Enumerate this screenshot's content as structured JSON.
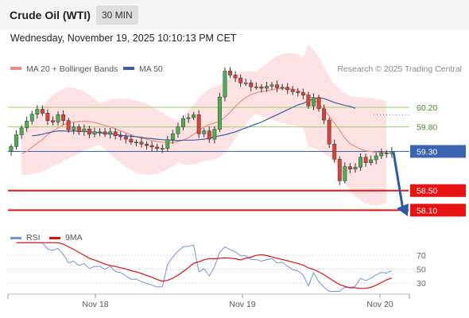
{
  "header": {
    "title": "Crude Oil (WTI)",
    "interval": "30 MIN"
  },
  "datetime": "Wednesday, November 19, 2025 10:10:13 PM CET",
  "legend": {
    "ma20": "MA 20 + Bollinger Bands",
    "ma50": "MA 50",
    "copyright": "Research © 2025 Trading Central"
  },
  "rsi_legend": {
    "rsi": "RSI",
    "ma": "9MA"
  },
  "colors": {
    "candle_up": "#4caf50",
    "candle_down": "#d9433a",
    "ma20": "#e6917f",
    "ma50": "#3a5fa5",
    "bollinger": "#fde2e4",
    "support": "#e81212",
    "pivot": "#3b63b0",
    "resistance": "#9ccc65",
    "forecast_arrow": "#2b5aa6",
    "rsi_line": "#6f95dd",
    "rsi_ma": "#e01010"
  },
  "chart_data": {
    "type": "candlestick",
    "x_ticks": [
      "Nov 18",
      "Nov 19",
      "Nov 20"
    ],
    "ylim": [
      57.7,
      60.85
    ],
    "levels": [
      {
        "value": 60.2,
        "label": "60.20",
        "kind": "resistance"
      },
      {
        "value": 59.8,
        "label": "59.80",
        "kind": "resistance"
      },
      {
        "value": 59.3,
        "label": "59.30",
        "kind": "pivot"
      },
      {
        "value": 58.5,
        "label": "58.50",
        "kind": "support"
      },
      {
        "value": 58.1,
        "label": "58.10",
        "kind": "support"
      }
    ],
    "closes": [
      59.4,
      59.64,
      59.78,
      59.92,
      60.06,
      60.16,
      60.08,
      59.93,
      59.9,
      60.05,
      59.93,
      59.74,
      59.8,
      59.7,
      59.76,
      59.65,
      59.7,
      59.7,
      59.65,
      59.7,
      59.62,
      59.6,
      59.55,
      59.49,
      59.49,
      59.45,
      59.42,
      59.39,
      59.36,
      59.36,
      59.54,
      59.66,
      59.8,
      59.97,
      59.99,
      60.05,
      59.66,
      59.72,
      59.55,
      59.75,
      60.41,
      60.94,
      60.86,
      60.8,
      60.7,
      60.7,
      60.62,
      60.62,
      60.59,
      60.63,
      60.66,
      60.6,
      60.61,
      60.56,
      60.52,
      60.5,
      60.45,
      60.23,
      60.4,
      60.17,
      59.94,
      59.45,
      59.14,
      58.7,
      58.99,
      58.94,
      58.98,
      59.18,
      59.07,
      59.13,
      59.21,
      59.27,
      59.25,
      59.3
    ],
    "ma20": [
      59.25,
      59.3,
      59.38,
      59.47,
      59.54,
      59.64,
      59.72,
      59.78,
      59.84,
      59.88,
      59.9,
      59.91,
      59.92,
      59.91,
      59.89,
      59.86,
      59.83,
      59.8,
      59.76,
      59.72,
      59.68,
      59.64,
      59.6,
      59.57,
      59.55,
      59.52,
      59.5,
      59.49,
      59.48,
      59.48,
      59.5,
      59.53,
      59.58,
      59.65,
      59.72,
      59.8,
      59.85,
      59.88,
      59.92,
      60.0,
      60.1,
      60.22,
      60.32,
      60.4,
      60.46,
      60.5,
      60.52,
      60.54,
      60.56,
      60.58,
      60.58,
      60.58,
      60.57,
      60.55,
      60.5,
      60.44,
      60.37,
      60.27,
      60.15,
      60.02,
      59.88,
      59.73,
      59.57,
      59.46,
      59.4,
      59.35,
      59.31,
      59.3,
      59.28,
      59.28,
      59.29
    ],
    "ma50": [
      59.62,
      59.63,
      59.65,
      59.68,
      59.7,
      59.72,
      59.72,
      59.71,
      59.72,
      59.71,
      59.71,
      59.7,
      59.69,
      59.68,
      59.67,
      59.66,
      59.65,
      59.63,
      59.62,
      59.61,
      59.6,
      59.59,
      59.57,
      59.56,
      59.55,
      59.54,
      59.53,
      59.53,
      59.52,
      59.53,
      59.53,
      59.53,
      59.54,
      59.55,
      59.57,
      59.6,
      59.62,
      59.64,
      59.67,
      59.7,
      59.74,
      59.78,
      59.82,
      59.86,
      59.9,
      59.95,
      60.0,
      60.05,
      60.1,
      60.15,
      60.2,
      60.25,
      60.28,
      60.33,
      60.37,
      60.4,
      60.38,
      60.34,
      60.3,
      60.27,
      60.24,
      60.22,
      60.18
    ],
    "rsi": {
      "ticks": [
        70,
        50,
        30
      ]
    }
  }
}
